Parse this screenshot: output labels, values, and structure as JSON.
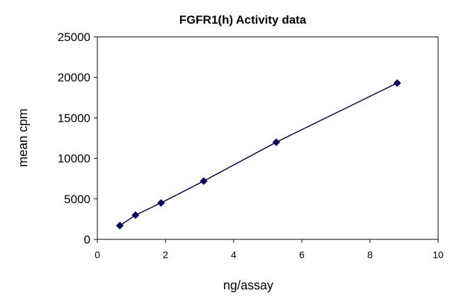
{
  "chart_data": {
    "type": "scatter",
    "title": "FGFR1(h) Activity data",
    "xlabel": "ng/assay",
    "ylabel": "mean cpm",
    "xlim": [
      0,
      10
    ],
    "ylim": [
      0,
      25000
    ],
    "x_ticks": [
      "0",
      "2",
      "4",
      "6",
      "8",
      "10"
    ],
    "y_ticks": [
      "0",
      "5000",
      "10000",
      "15000",
      "20000",
      "25000"
    ],
    "grid": false,
    "legend": "none",
    "series": [
      {
        "x": [
          0.66,
          1.12,
          1.87,
          3.12,
          5.25,
          8.8
        ],
        "y": [
          1700,
          3000,
          4500,
          7200,
          12000,
          19300
        ],
        "marker": "diamond",
        "line": true,
        "color": "#000066"
      }
    ]
  }
}
